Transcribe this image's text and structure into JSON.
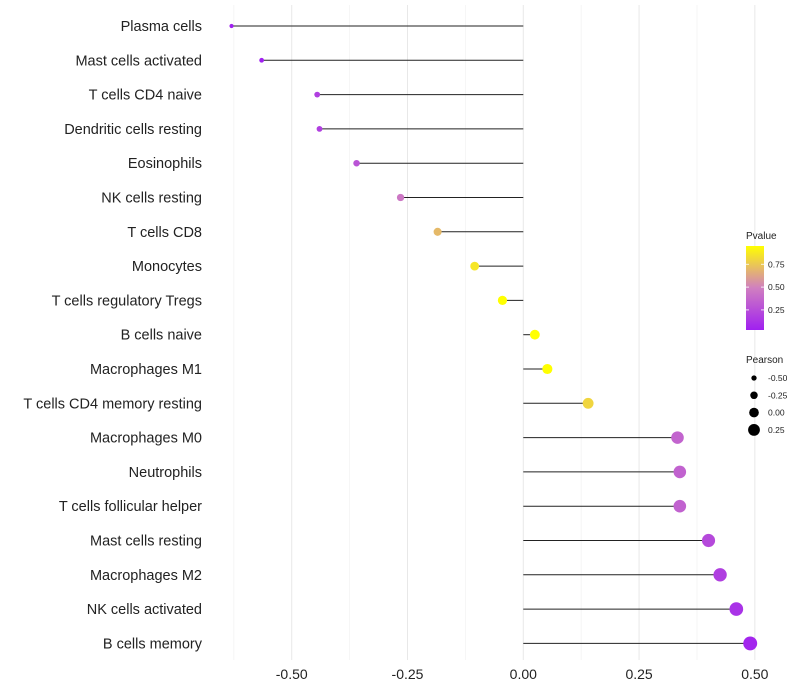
{
  "chart_data": {
    "type": "lollipop",
    "xlabel": "",
    "ylabel": "",
    "xlim": [
      -0.67,
      0.55
    ],
    "x_ticks": [
      -0.5,
      -0.25,
      0.0,
      0.25,
      0.5
    ],
    "x_tick_labels": [
      "-0.50",
      "-0.25",
      "0.00",
      "0.25",
      "0.50"
    ],
    "grid": true,
    "baseline": 0,
    "categories": [
      "Plasma cells",
      "Mast cells activated",
      "T cells CD4 naive",
      "Dendritic cells resting",
      "Eosinophils",
      "NK cells resting",
      "T cells CD8",
      "Monocytes",
      "T cells regulatory  Tregs ",
      "B cells naive",
      "Macrophages M1",
      "T cells CD4 memory resting",
      "Macrophages M0",
      "Neutrophils",
      "T cells follicular helper",
      "Mast cells resting",
      "Macrophages M2",
      "NK cells activated",
      "B cells memory"
    ],
    "values": [
      -0.63,
      -0.565,
      -0.445,
      -0.44,
      -0.36,
      -0.265,
      -0.185,
      -0.105,
      -0.045,
      0.025,
      0.052,
      0.14,
      0.333,
      0.338,
      0.338,
      0.4,
      0.425,
      0.46,
      0.49
    ],
    "pvalues": [
      0.0,
      0.03,
      0.18,
      0.18,
      0.28,
      0.45,
      0.7,
      0.86,
      0.98,
      0.99,
      0.96,
      0.8,
      0.36,
      0.35,
      0.35,
      0.23,
      0.18,
      0.12,
      0.06
    ],
    "legends": {
      "color": {
        "title": "Pvalue",
        "position": "right",
        "range": [
          0.03,
          0.95
        ],
        "ticks": [
          0.25,
          0.5,
          0.75
        ],
        "tick_labels": [
          "0.25",
          "0.50",
          "0.75"
        ],
        "low_color": "#a020f0",
        "mid_color": "#d07fc0",
        "high_color": "#ffff00"
      },
      "size": {
        "title": "Pearson",
        "position": "right",
        "values": [
          -0.5,
          -0.25,
          0.0,
          0.25
        ],
        "labels": [
          "-0.50",
          "-0.25",
          "0.00",
          "0.25"
        ]
      }
    }
  }
}
